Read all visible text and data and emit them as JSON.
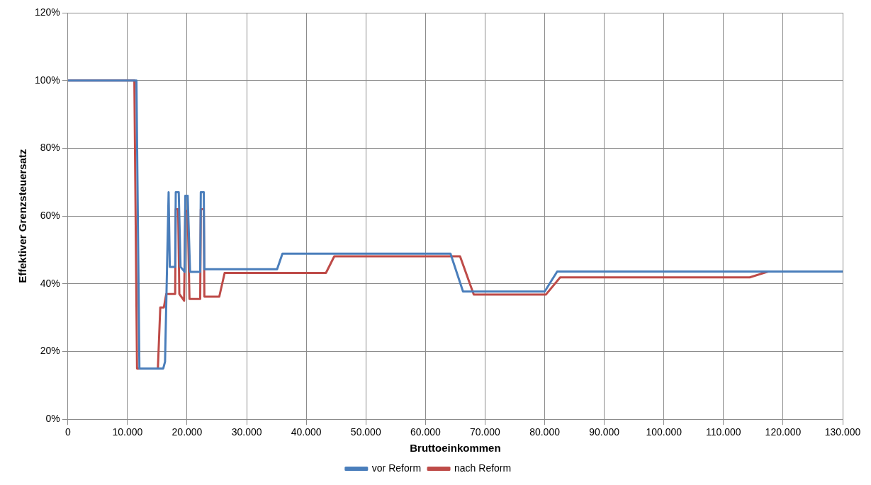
{
  "chart_data": {
    "type": "line",
    "xlabel": "Bruttoeinkommen",
    "ylabel": "Effektiver Grenzsteuersatz",
    "xlim": [
      0,
      130000
    ],
    "ylim": [
      0,
      120
    ],
    "xticks": [
      {
        "value": 0,
        "label": "0"
      },
      {
        "value": 10000,
        "label": "10.000"
      },
      {
        "value": 20000,
        "label": "20.000"
      },
      {
        "value": 30000,
        "label": "30.000"
      },
      {
        "value": 40000,
        "label": "40.000"
      },
      {
        "value": 50000,
        "label": "50.000"
      },
      {
        "value": 60000,
        "label": "60.000"
      },
      {
        "value": 70000,
        "label": "70.000"
      },
      {
        "value": 80000,
        "label": "80.000"
      },
      {
        "value": 90000,
        "label": "90.000"
      },
      {
        "value": 100000,
        "label": "100.000"
      },
      {
        "value": 110000,
        "label": "110.000"
      },
      {
        "value": 120000,
        "label": "120.000"
      },
      {
        "value": 130000,
        "label": "130.000"
      }
    ],
    "yticks": [
      {
        "value": 0,
        "label": "0%"
      },
      {
        "value": 20,
        "label": "20%"
      },
      {
        "value": 40,
        "label": "40%"
      },
      {
        "value": 60,
        "label": "60%"
      },
      {
        "value": 80,
        "label": "80%"
      },
      {
        "value": 100,
        "label": "100%"
      },
      {
        "value": 120,
        "label": "120%"
      }
    ],
    "grid": true,
    "legend": "bottom",
    "marker": "none",
    "line_style": "solid",
    "series": [
      {
        "name": "vor Reform",
        "color": "#4a7ebb",
        "x": [
          0,
          11500,
          12000,
          16000,
          16300,
          16900,
          17100,
          18000,
          18100,
          18600,
          18900,
          19600,
          19700,
          20100,
          20500,
          22200,
          22300,
          22800,
          22900,
          35100,
          36000,
          64200,
          66300,
          80000,
          82100,
          130000
        ],
        "values": [
          100,
          100,
          15,
          15,
          17,
          67,
          45,
          45,
          67,
          67,
          45,
          43.5,
          66,
          66,
          43.5,
          43.5,
          67,
          67,
          44.3,
          44.3,
          48.9,
          48.9,
          37.7,
          37.7,
          43.6,
          43.6
        ]
      },
      {
        "name": "nach Reform",
        "color": "#be4b48",
        "x": [
          0,
          11150,
          11600,
          15100,
          15500,
          16100,
          16500,
          18000,
          18100,
          18500,
          18700,
          19500,
          19700,
          20100,
          20400,
          22200,
          22300,
          22800,
          22900,
          25400,
          26300,
          43300,
          44700,
          65800,
          68100,
          80200,
          82600,
          114400,
          117500,
          130000
        ],
        "values": [
          100,
          100,
          15,
          15,
          33,
          33,
          37,
          37,
          62,
          62,
          37,
          35,
          61.5,
          61.5,
          35.5,
          35.5,
          62,
          62,
          36.2,
          36.2,
          43.2,
          43.2,
          48.1,
          48.1,
          36.8,
          36.8,
          41.9,
          41.9,
          43.6,
          43.6
        ]
      }
    ]
  }
}
